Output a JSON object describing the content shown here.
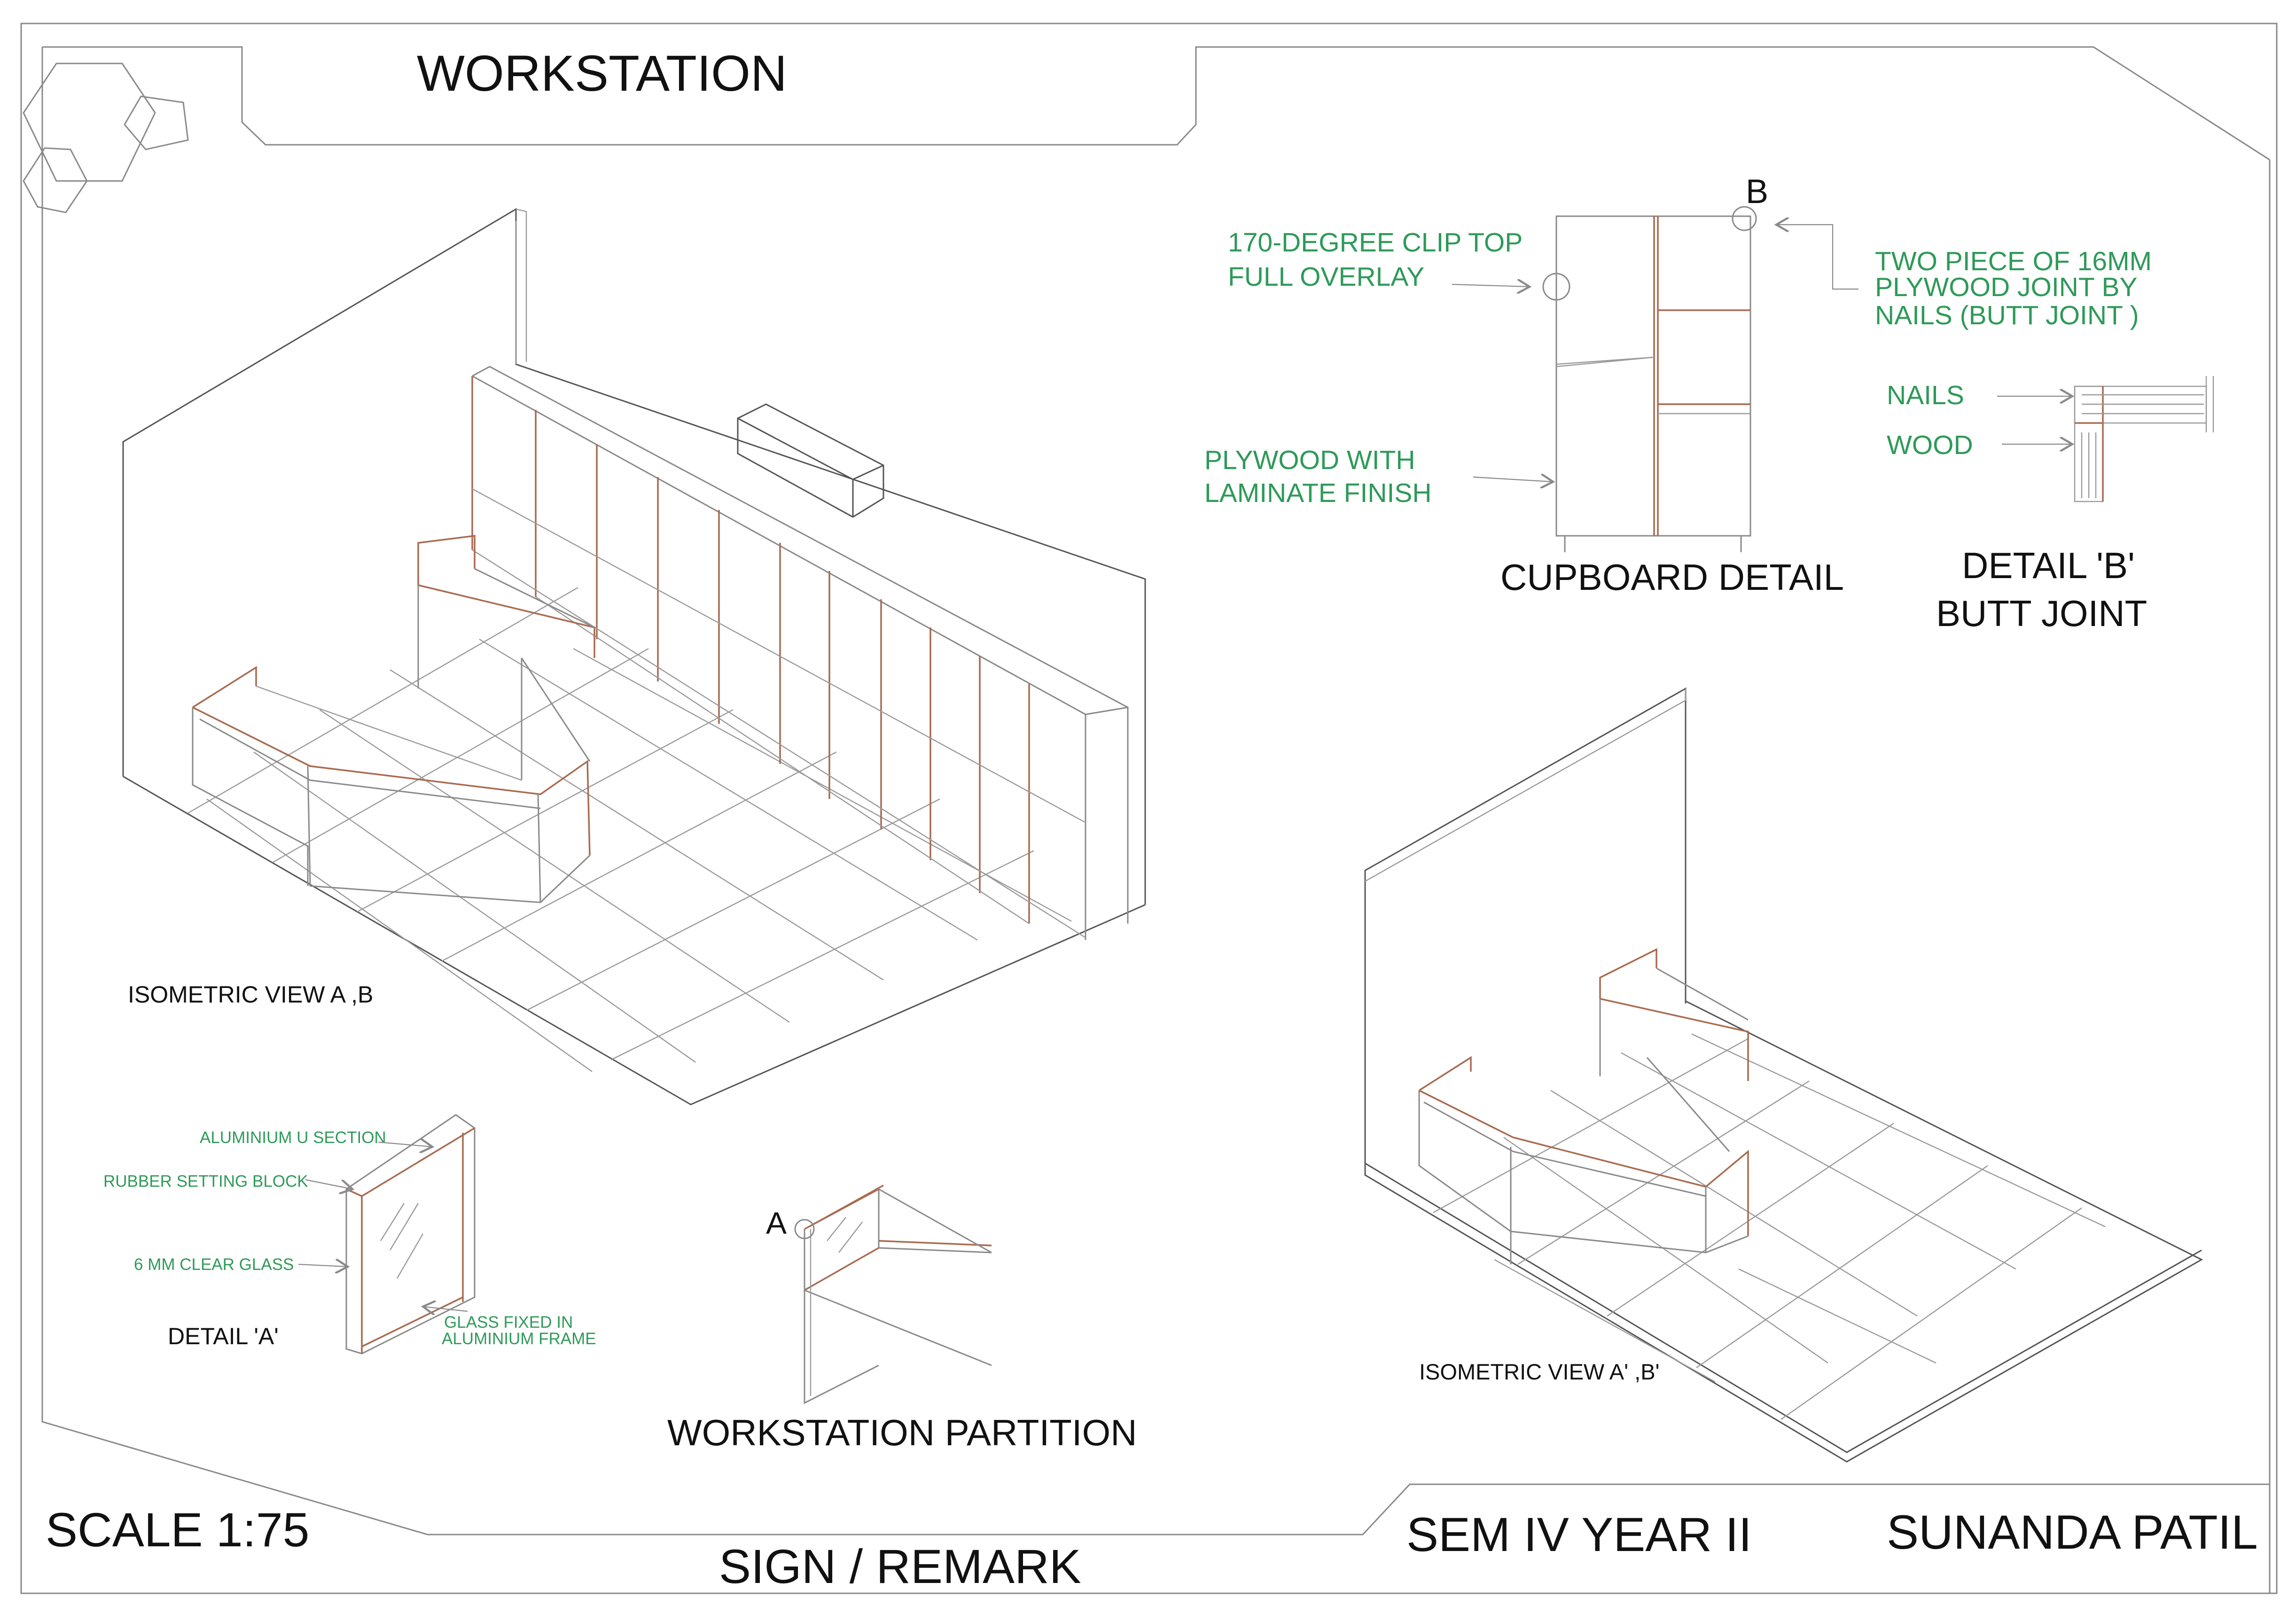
{
  "title": "WORKSTATION",
  "views": {
    "iso_main_label": "ISOMETRIC VIEW  A ,B",
    "iso_second_label": "ISOMETRIC VIEW  A' ,B'"
  },
  "cupboard": {
    "title": "CUPBOARD DETAIL",
    "marker": "B",
    "note_hinge_1": "170-DEGREE CLIP TOP",
    "note_hinge_2": "FULL OVERLAY",
    "note_material_1": "PLYWOOD  WITH",
    "note_material_2": "LAMINATE  FINISH",
    "note_joint_1": "TWO PIECE OF 16MM",
    "note_joint_2": "PLYWOOD  JOINT BY",
    "note_joint_3": "NAILS (BUTT   JOINT )"
  },
  "detail_b": {
    "title_1": "DETAIL 'B'",
    "title_2": "BUTT JOINT",
    "nails_label": "NAILS",
    "wood_label": "WOOD"
  },
  "detail_a": {
    "title": "DETAIL 'A'",
    "note_section": "ALUMINIUM U SECTION",
    "note_block": "RUBBER SETTING BLOCK",
    "note_glass": "6 MM CLEAR GLASS",
    "note_frame_1": "GLASS FIXED IN",
    "note_frame_2": "ALUMINIUM FRAME"
  },
  "partition": {
    "title": "WORKSTATION PARTITION",
    "marker": "A"
  },
  "title_block": {
    "scale": "SCALE 1:75",
    "sign": "SIGN / REMARK",
    "semester": "SEM  IV  YEAR II",
    "author": "SUNANDA PATIL"
  },
  "colors": {
    "annotation": "#2e9a58",
    "furniture_edge": "#a86b50",
    "linework": "#8a8a8a"
  }
}
